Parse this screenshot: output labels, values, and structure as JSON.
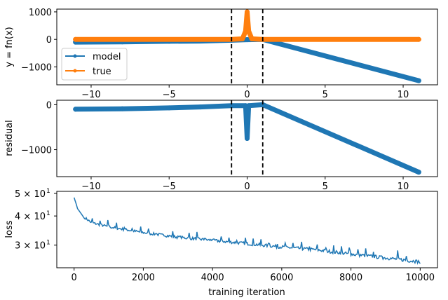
{
  "chart_data": [
    {
      "type": "line",
      "ylabel": "y = fn(x)",
      "xlim": [
        -12.2,
        12.2
      ],
      "ylim": [
        -1650,
        1100
      ],
      "xticks": [
        -10,
        -5,
        0,
        5,
        10
      ],
      "xtick_labels": [
        "−10",
        "−5",
        "0",
        "5",
        "10"
      ],
      "yticks": [
        1000,
        0,
        -1000
      ],
      "ytick_labels": [
        "1000",
        "0",
        "−1000"
      ],
      "vlines": [
        -1,
        1
      ],
      "legend": {
        "placement": "lower-left",
        "entries": [
          "model",
          "true"
        ]
      },
      "series": [
        {
          "name": "model",
          "color": "#1f77b4",
          "x": [
            -11,
            -8,
            -5,
            -3,
            -1,
            0,
            1,
            11
          ],
          "y": [
            -100,
            -90,
            -70,
            -60,
            -30,
            -10,
            0,
            -1500
          ]
        },
        {
          "name": "true",
          "color": "#ff7f0e",
          "x": [
            -11,
            -1,
            -0.3,
            -0.1,
            0,
            0.1,
            0.3,
            1,
            11
          ],
          "y": [
            0,
            0,
            20,
            300,
            1000,
            300,
            20,
            0,
            0
          ]
        }
      ]
    },
    {
      "type": "line",
      "ylabel": "residual",
      "xlim": [
        -12.2,
        12.2
      ],
      "ylim": [
        -1600,
        100
      ],
      "xticks": [
        -10,
        -5,
        0,
        5,
        10
      ],
      "xtick_labels": [
        "−10",
        "−5",
        "0",
        "5",
        "10"
      ],
      "yticks": [
        0,
        -1000
      ],
      "ytick_labels": [
        "0",
        "−1000"
      ],
      "vlines": [
        -1,
        1
      ],
      "series": [
        {
          "name": "residual",
          "color": "#1f77b4",
          "x": [
            -11,
            -8,
            -5,
            -3,
            -1,
            -0.1,
            0,
            0.1,
            1,
            11
          ],
          "y": [
            -100,
            -90,
            -70,
            -50,
            -20,
            -20,
            -750,
            -20,
            0,
            -1500
          ]
        }
      ]
    },
    {
      "type": "line",
      "ylabel": "loss",
      "xlabel": "training iteration",
      "xlim": [
        -500,
        10500
      ],
      "yscale": "log",
      "ylim": [
        24,
        51
      ],
      "xticks": [
        0,
        2000,
        4000,
        6000,
        8000,
        10000
      ],
      "xtick_labels": [
        "0",
        "2000",
        "4000",
        "6000",
        "8000",
        "10000"
      ],
      "yticks": [
        50,
        40,
        30
      ],
      "ytick_labels": [
        "5 × 10",
        "4 × 10",
        "3 × 10"
      ],
      "ytick_exp": "1",
      "series": [
        {
          "name": "loss",
          "color": "#1f77b4",
          "x": [
            0,
            100,
            300,
            500,
            1000,
            1500,
            2000,
            3000,
            4000,
            5000,
            6000,
            7000,
            8000,
            9000,
            10000
          ],
          "y": [
            48,
            43,
            39,
            37,
            35.5,
            34.5,
            33.5,
            32,
            31,
            30,
            29,
            28.2,
            27,
            26,
            25
          ]
        }
      ]
    }
  ]
}
